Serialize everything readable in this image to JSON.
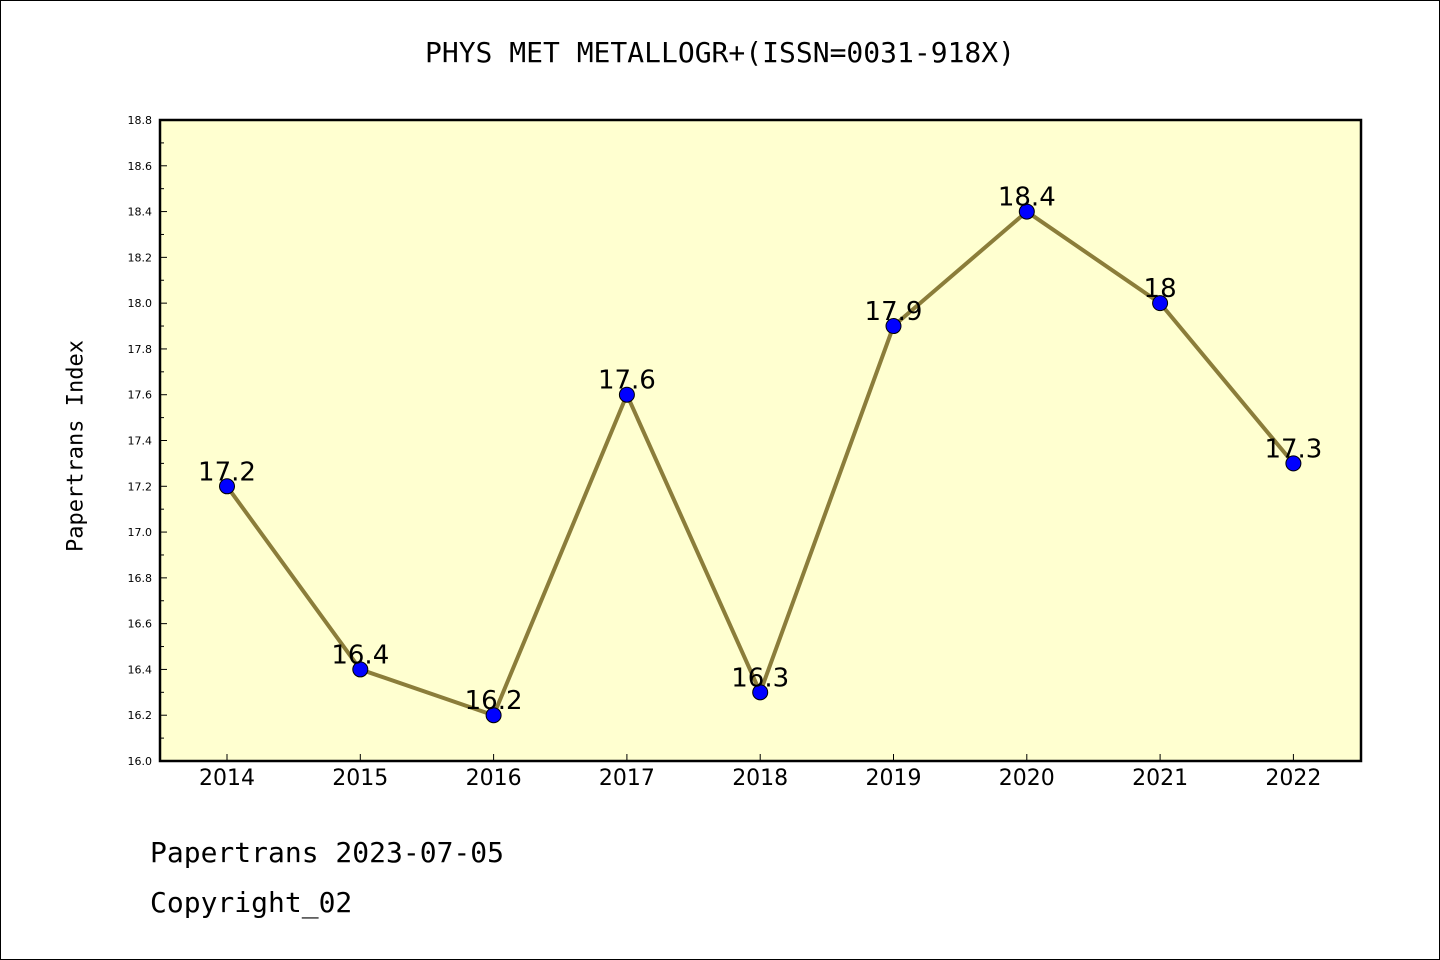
{
  "chart_data": {
    "type": "line",
    "title": "PHYS MET METALLOGR+(ISSN=0031-918X)",
    "xlabel": "",
    "ylabel": "Papertrans Index",
    "categories": [
      "2014",
      "2015",
      "2016",
      "2017",
      "2018",
      "2019",
      "2020",
      "2021",
      "2022"
    ],
    "series": [
      {
        "values": [
          17.2,
          16.4,
          16.2,
          17.6,
          16.3,
          17.9,
          18.4,
          18.0,
          17.3
        ],
        "data_labels": [
          "17.2",
          "16.4",
          "16.2",
          "17.6",
          "16.3",
          "17.9",
          "18.4",
          "18",
          "17.3"
        ]
      }
    ],
    "ylim": [
      16.0,
      18.8
    ],
    "yticks": [
      "16.0",
      "16.2",
      "16.4",
      "16.6",
      "16.8",
      "17.0",
      "17.2",
      "17.4",
      "17.6",
      "17.8",
      "18.0",
      "18.2",
      "18.4",
      "18.6",
      "18.8"
    ],
    "grid": false,
    "legend": "none",
    "colors": {
      "plot_background": "#ffffd0",
      "line": "#8b7d3a",
      "marker": "#0000ff",
      "marker_edge": "#000000"
    }
  },
  "footer": {
    "date_line": "Papertrans 2023-07-05",
    "copyright_line": "Copyright_02"
  }
}
